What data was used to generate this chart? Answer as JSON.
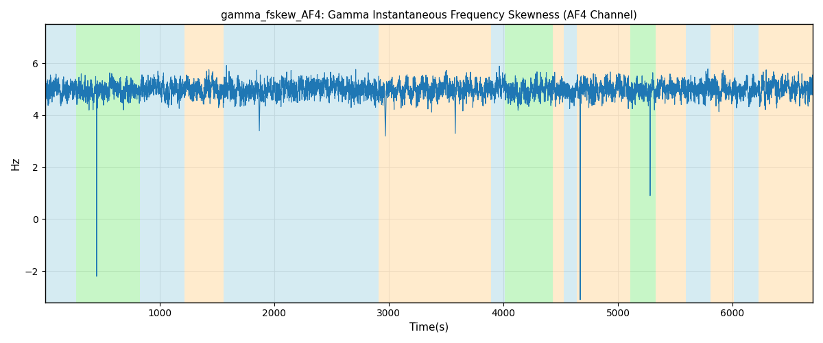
{
  "title": "gamma_fskew_AF4: Gamma Instantaneous Frequency Skewness (AF4 Channel)",
  "xlabel": "Time(s)",
  "ylabel": "Hz",
  "xlim": [
    0,
    6700
  ],
  "ylim": [
    -3.2,
    7.5
  ],
  "yticks": [
    -2,
    0,
    2,
    4,
    6
  ],
  "xticks": [
    1000,
    2000,
    3000,
    4000,
    5000,
    6000
  ],
  "bg_bands": [
    {
      "xmin": 0,
      "xmax": 270,
      "color": "#add8e6",
      "alpha": 0.5
    },
    {
      "xmin": 270,
      "xmax": 830,
      "color": "#90ee90",
      "alpha": 0.5
    },
    {
      "xmin": 830,
      "xmax": 1220,
      "color": "#add8e6",
      "alpha": 0.5
    },
    {
      "xmin": 1220,
      "xmax": 1560,
      "color": "#ffdead",
      "alpha": 0.6
    },
    {
      "xmin": 1560,
      "xmax": 2910,
      "color": "#add8e6",
      "alpha": 0.5
    },
    {
      "xmin": 2910,
      "xmax": 3100,
      "color": "#ffdead",
      "alpha": 0.6
    },
    {
      "xmin": 3100,
      "xmax": 3890,
      "color": "#ffdead",
      "alpha": 0.6
    },
    {
      "xmin": 3890,
      "xmax": 4010,
      "color": "#add8e6",
      "alpha": 0.5
    },
    {
      "xmin": 4010,
      "xmax": 4430,
      "color": "#90ee90",
      "alpha": 0.5
    },
    {
      "xmin": 4430,
      "xmax": 4530,
      "color": "#ffdead",
      "alpha": 0.6
    },
    {
      "xmin": 4530,
      "xmax": 4640,
      "color": "#add8e6",
      "alpha": 0.5
    },
    {
      "xmin": 4640,
      "xmax": 5110,
      "color": "#ffdead",
      "alpha": 0.6
    },
    {
      "xmin": 5110,
      "xmax": 5330,
      "color": "#90ee90",
      "alpha": 0.5
    },
    {
      "xmin": 5330,
      "xmax": 5590,
      "color": "#ffdead",
      "alpha": 0.6
    },
    {
      "xmin": 5590,
      "xmax": 5810,
      "color": "#add8e6",
      "alpha": 0.5
    },
    {
      "xmin": 5810,
      "xmax": 6010,
      "color": "#ffdead",
      "alpha": 0.6
    },
    {
      "xmin": 6010,
      "xmax": 6230,
      "color": "#add8e6",
      "alpha": 0.5
    },
    {
      "xmin": 6230,
      "xmax": 6700,
      "color": "#ffdead",
      "alpha": 0.6
    }
  ],
  "line_color": "#1f77b4",
  "line_width": 0.8,
  "signal_seed": 7,
  "n_points": 6700,
  "base_value": 5.0
}
